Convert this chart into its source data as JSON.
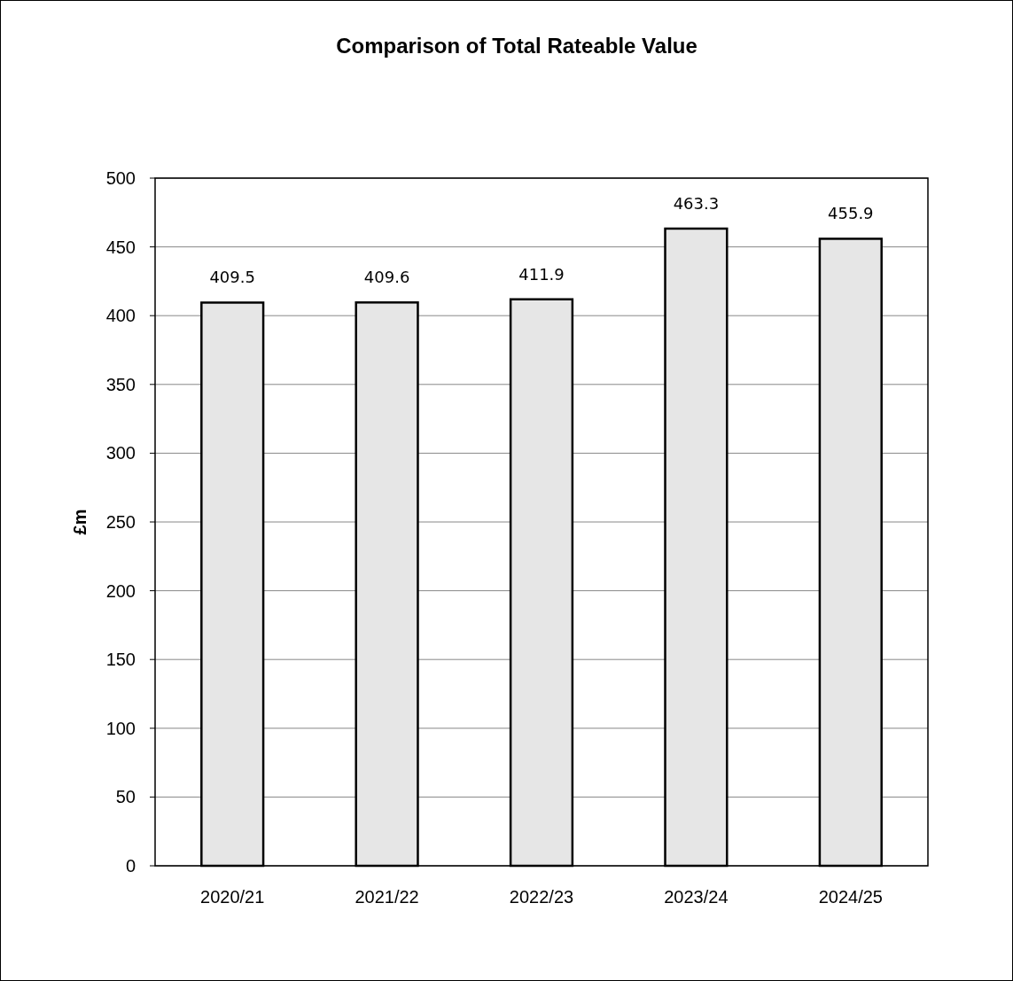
{
  "chart_data": {
    "type": "bar",
    "title": "Comparison of Total Rateable Value",
    "ylabel": "£m",
    "categories": [
      "2020/21",
      "2021/22",
      "2022/23",
      "2023/24",
      "2024/25"
    ],
    "values": [
      409.5,
      409.6,
      411.9,
      463.3,
      455.9
    ],
    "color": "#e6e6e6",
    "ylim": [
      0,
      500
    ],
    "yticks": [
      0,
      50,
      100,
      150,
      200,
      250,
      300,
      350,
      400,
      450,
      500
    ],
    "grid": "y",
    "data_labels": true
  }
}
